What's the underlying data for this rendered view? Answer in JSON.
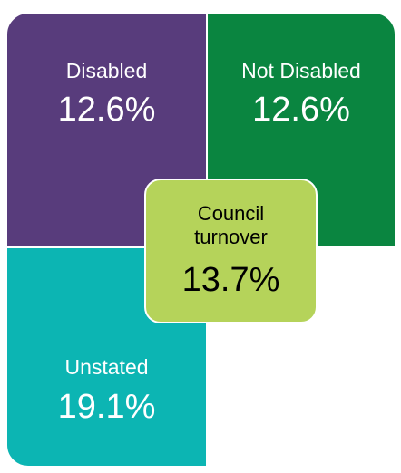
{
  "tiles": {
    "disabled": {
      "label": "Disabled",
      "value": "12.6%",
      "color": "#583c7c"
    },
    "not_disabled": {
      "label": "Not Disabled",
      "value": "12.6%",
      "color": "#0a8540"
    },
    "unstated": {
      "label": "Unstated",
      "value": "19.1%",
      "color": "#0cb5b3"
    }
  },
  "center": {
    "label_line1": "Council",
    "label_line2": "turnover",
    "value": "13.7%",
    "color": "#b5d35a"
  }
}
